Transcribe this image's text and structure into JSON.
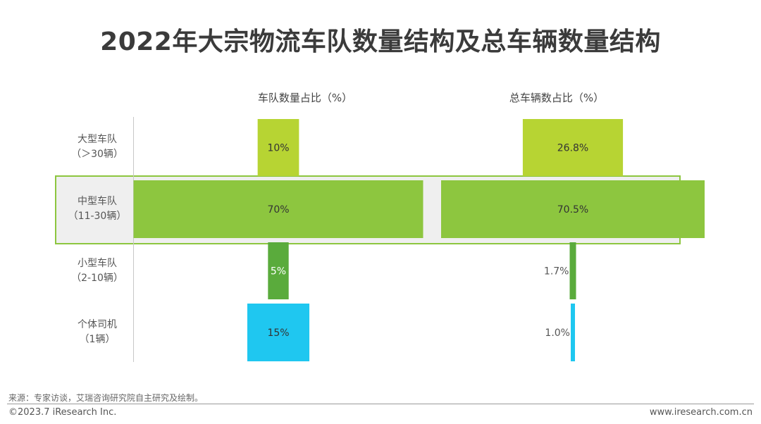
{
  "chart_data": {
    "type": "bar",
    "title": "2022年大宗物流车队数量结构及总车辆数量结构",
    "categories": [
      {
        "line1": "大型车队",
        "line2": "（＞30辆）"
      },
      {
        "line1": "中型车队",
        "line2": "（11-30辆）"
      },
      {
        "line1": "小型车队",
        "line2": "（2-10辆）"
      },
      {
        "line1": "个体司机",
        "line2": "（1辆）"
      }
    ],
    "series": [
      {
        "name": "车队数量占比（%）",
        "values": [
          10,
          70,
          5,
          15
        ],
        "labels": [
          "10%",
          "70%",
          "5%",
          "15%"
        ]
      },
      {
        "name": "总车辆数占比（%）",
        "values": [
          26.8,
          70.5,
          1.7,
          1.0
        ],
        "labels": [
          "26.8%",
          "70.5%",
          "1.7%",
          "1.0%"
        ]
      }
    ],
    "colors": [
      "#b7d433",
      "#8dc63f",
      "#5aab3c",
      "#1fc7f0"
    ],
    "highlight_category": "中型车队"
  },
  "source": "来源：专家访谈，艾瑞咨询研究院自主研究及绘制。",
  "copyright": "©2023.7 iResearch Inc.",
  "website": "www.iresearch.com.cn"
}
